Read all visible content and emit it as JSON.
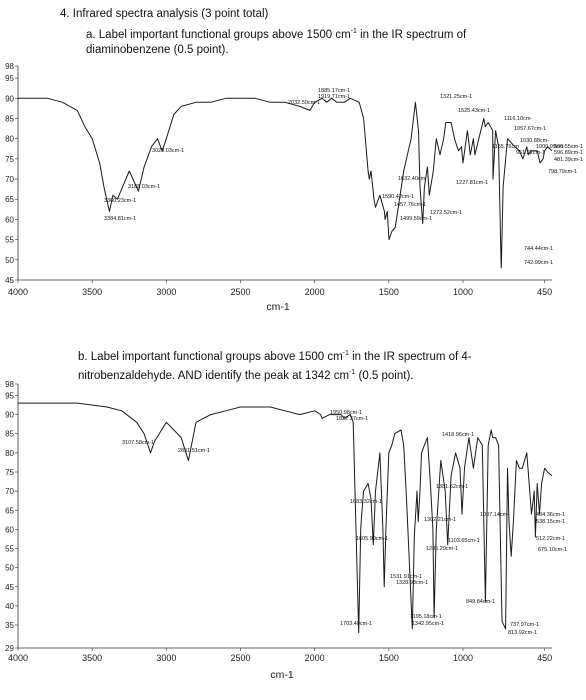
{
  "question": {
    "title": "4. Infrared spectra analysis (3 point total)",
    "part_a": {
      "text": "a. Label important functional groups above 1500 cm",
      "sup": "-1",
      "text_after": " in the IR spectrum of",
      "line2": "diaminobenzene (0.5 point)."
    },
    "part_b": {
      "text": "b. Label important functional groups above 1500 cm",
      "sup": "-1",
      "text_after": " in the IR spectrum of 4-",
      "line2": "nitrobenzaldehyde. AND identify the peak at 1342 cm",
      "sup2": "-1",
      "line2_after": " (0.5 point)."
    }
  },
  "chart_data": [
    {
      "type": "line",
      "name": "diaminobenzene",
      "xlabel": "cm-1",
      "ylabel": "",
      "xlim": [
        4000,
        400
      ],
      "ylim": [
        45,
        98
      ],
      "x_ticks": [
        4000,
        3500,
        3000,
        2500,
        2000,
        1500,
        1000,
        450
      ],
      "x_tick_labels": [
        "4000",
        "3500",
        "3000",
        "2500",
        "2000",
        "1500",
        "1000",
        "450"
      ],
      "y_ticks": [
        98,
        95,
        90,
        85,
        80,
        75,
        70,
        65,
        60,
        55,
        50,
        45
      ],
      "y_tick_labels": [
        "98",
        "95",
        "90",
        "85",
        "80",
        "75",
        "70",
        "65",
        "60",
        "55",
        "50",
        "45"
      ],
      "x": [
        4000,
        3800,
        3700,
        3600,
        3550,
        3500,
        3450,
        3420,
        3384,
        3360,
        3330,
        3250,
        3188,
        3150,
        3100,
        3060,
        3028,
        3000,
        2950,
        2900,
        2800,
        2700,
        2600,
        2500,
        2400,
        2300,
        2200,
        2100,
        2032,
        2000,
        1950,
        1919,
        1885,
        1850,
        1800,
        1760,
        1700,
        1670,
        1640,
        1632,
        1620,
        1600,
        1590,
        1560,
        1530,
        1525,
        1510,
        1499,
        1480,
        1457,
        1440,
        1400,
        1350,
        1321,
        1300,
        1290,
        1272,
        1260,
        1240,
        1227,
        1200,
        1180,
        1155,
        1130,
        1116,
        1090,
        1080,
        1057,
        1040,
        1030,
        1010,
        1000,
        970,
        951,
        930,
        920,
        880,
        860,
        850,
        830,
        800,
        798,
        780,
        760,
        744,
        742,
        730,
        700,
        650,
        620,
        596,
        570,
        560,
        540,
        500,
        481,
        461,
        450,
        430,
        400
      ],
      "y": [
        90,
        90,
        89,
        87,
        83,
        80,
        74,
        68,
        62,
        66,
        65,
        72,
        67,
        73,
        78,
        80,
        77,
        80,
        86,
        88,
        89,
        89,
        90,
        90,
        90,
        89,
        89,
        88,
        87,
        89,
        90,
        89,
        90,
        89,
        89,
        90,
        89,
        85,
        72,
        70,
        72,
        65,
        63,
        66,
        62,
        60,
        62,
        55,
        57,
        58,
        62,
        72,
        80,
        89,
        82,
        68,
        59,
        68,
        73,
        66,
        72,
        80,
        76,
        80,
        84,
        84,
        84,
        80,
        78,
        77,
        78,
        74,
        82,
        76,
        80,
        76,
        82,
        85,
        83,
        84,
        82,
        70,
        82,
        78,
        50,
        48,
        68,
        80,
        78,
        77,
        75,
        78,
        76,
        77,
        77,
        74,
        75,
        77,
        78,
        77
      ],
      "annotations": [
        "1885.17cm-1",
        "1919.71cm-1",
        "2032.50cm-1",
        "1321.25cm-1",
        "1525.43cm-1",
        "1116.10cm-",
        "1057.67cm-1",
        "1030.88cm-",
        "1155.76cm",
        "1000.99cm-",
        "951.22cm-1",
        "560.55cm-1",
        "596.89cm-1",
        "481.39cm-1",
        "798.79cm-1",
        "1632.40cm",
        "1227.81cm-1",
        "1590.42cm-1",
        "1457.76cm-1",
        "1272.52cm-1",
        "1499.59cm-1",
        "744.44cm-1",
        "742.99cm-1",
        "3028.03cm-1",
        "3188.03cm-1",
        "3360.23cm-1",
        "3384.81cm-1"
      ]
    },
    {
      "type": "line",
      "name": "4-nitrobenzaldehyde",
      "xlabel": "cm-1",
      "ylabel": "",
      "xlim": [
        4000,
        400
      ],
      "ylim": [
        29,
        98
      ],
      "x_ticks": [
        4000,
        3500,
        3000,
        2500,
        2000,
        1500,
        1000,
        450
      ],
      "x_tick_labels": [
        "4000",
        "3500",
        "3000",
        "2500",
        "2000",
        "1500",
        "1000",
        "450"
      ],
      "y_ticks": [
        98,
        95,
        90,
        85,
        80,
        75,
        70,
        65,
        60,
        55,
        50,
        45,
        40,
        35,
        29
      ],
      "y_tick_labels": [
        "98",
        "95",
        "90",
        "85",
        "80",
        "75",
        "70",
        "65",
        "60",
        "55",
        "50",
        "45",
        "40",
        "35",
        "29"
      ],
      "x": [
        4000,
        3800,
        3600,
        3400,
        3300,
        3200,
        3150,
        3107,
        3080,
        3000,
        2950,
        2900,
        2851,
        2820,
        2800,
        2750,
        2700,
        2600,
        2500,
        2400,
        2300,
        2200,
        2100,
        2000,
        1960,
        1950,
        1900,
        1840,
        1822,
        1800,
        1760,
        1740,
        1703,
        1690,
        1683,
        1670,
        1640,
        1620,
        1605,
        1590,
        1560,
        1540,
        1531,
        1520,
        1500,
        1480,
        1460,
        1418,
        1400,
        1381,
        1360,
        1342,
        1328,
        1310,
        1302,
        1290,
        1280,
        1260,
        1240,
        1220,
        1203,
        1195,
        1180,
        1150,
        1120,
        1103,
        1080,
        1050,
        1020,
        1007,
        990,
        960,
        930,
        900,
        870,
        849,
        830,
        810,
        800,
        780,
        760,
        737,
        713,
        700,
        690,
        675,
        660,
        640,
        620,
        600,
        570,
        538,
        520,
        512,
        500,
        484,
        470,
        450,
        430,
        400
      ],
      "y": [
        93,
        93,
        93,
        92,
        91,
        88,
        85,
        80,
        83,
        88,
        86,
        84,
        78,
        84,
        88,
        89,
        90,
        91,
        92,
        92,
        92,
        91,
        90,
        91,
        90,
        89,
        90,
        90,
        90,
        89,
        90,
        88,
        33,
        60,
        64,
        70,
        72,
        68,
        56,
        70,
        80,
        60,
        45,
        60,
        80,
        82,
        85,
        86,
        82,
        68,
        50,
        34,
        58,
        70,
        62,
        70,
        80,
        82,
        84,
        72,
        60,
        37,
        60,
        78,
        70,
        56,
        74,
        80,
        76,
        64,
        76,
        84,
        76,
        84,
        82,
        41,
        82,
        86,
        84,
        84,
        82,
        36,
        34,
        76,
        62,
        53,
        62,
        78,
        76,
        76,
        80,
        64,
        70,
        58,
        72,
        64,
        72,
        76,
        75,
        74
      ],
      "annotations": [
        "1950.98cm-1",
        "1822.37cm-1",
        "1418.96cm-1",
        "1381.62cm-1",
        "1683.32cm-1",
        "1007.14cm-",
        "1302.21cm-1",
        "1605.99cm-1",
        "1103.65cm-1",
        "1286.29cm-1",
        "1531.91cm-1",
        "1328.98cm-1",
        "849.84cm-1",
        "1195.18cm-1",
        "1703.40cm-1",
        "1342.95cm-1",
        "737.97cm-1",
        "813.92cm-1",
        "484.36cm-1",
        "538.15cm-1",
        "512.22cm-1",
        "675.10cm-1",
        "3107.58cm-1",
        "2851.51cm-1"
      ]
    }
  ]
}
